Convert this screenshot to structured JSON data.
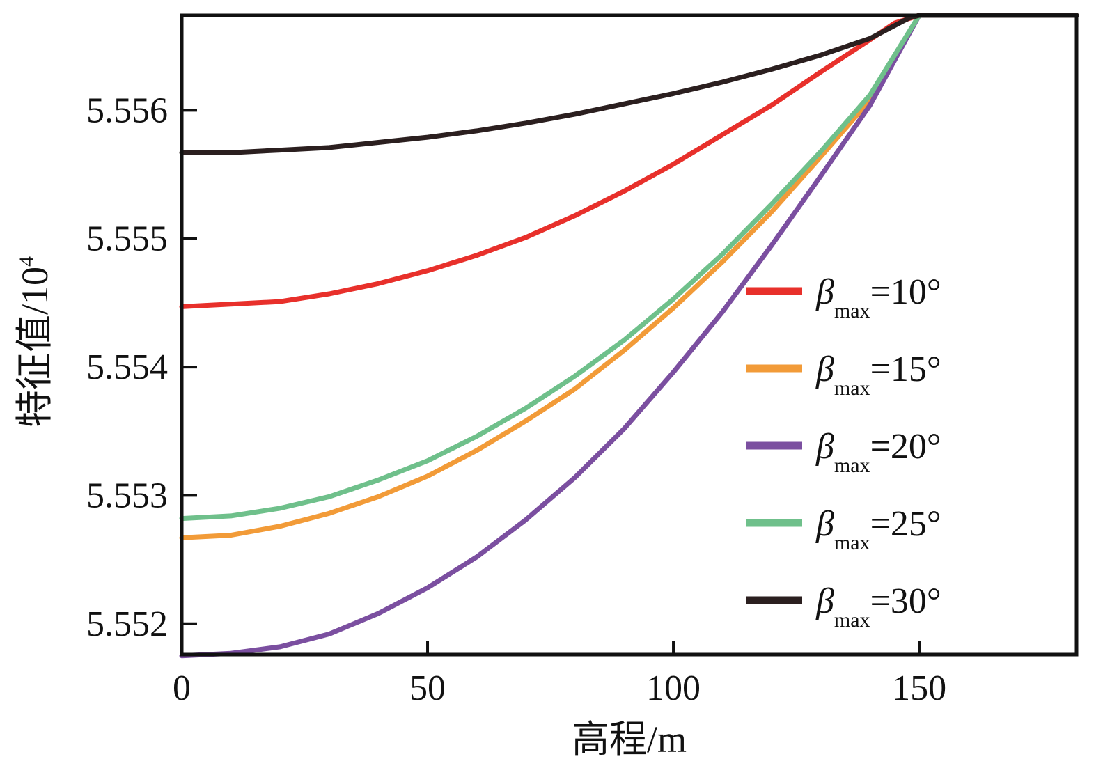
{
  "chart_data": {
    "type": "line",
    "xlabel": "高程/m",
    "ylabel": "特征值/10",
    "ylabel_exponent": "4",
    "xlim": [
      0,
      182
    ],
    "ylim": [
      5.55176,
      5.55674
    ],
    "xticks": [
      0,
      50,
      100,
      150
    ],
    "xtick_labels": [
      "0",
      "50",
      "100",
      "150"
    ],
    "yticks": [
      5.552,
      5.553,
      5.554,
      5.555,
      5.556
    ],
    "ytick_labels": [
      "5.552",
      "5.553",
      "5.554",
      "5.555",
      "5.556"
    ],
    "legend": {
      "position": "right",
      "symbol": "β",
      "subscript": "max"
    },
    "series": [
      {
        "name": "βmax=10°",
        "label_suffix": "=10°",
        "color": "#e8302b",
        "x": [
          0,
          10,
          20,
          30,
          40,
          50,
          60,
          70,
          80,
          90,
          100,
          110,
          120,
          130,
          140,
          145,
          150,
          160,
          170,
          182
        ],
        "y": [
          5.55447,
          5.55449,
          5.55451,
          5.55457,
          5.55465,
          5.55475,
          5.55487,
          5.55501,
          5.55518,
          5.55537,
          5.55558,
          5.55581,
          5.55604,
          5.5563,
          5.55655,
          5.55668,
          5.55674,
          5.55674,
          5.55674,
          5.55674
        ]
      },
      {
        "name": "βmax=15°",
        "label_suffix": "=15°",
        "color": "#f29b38",
        "x": [
          0,
          10,
          20,
          30,
          40,
          50,
          60,
          70,
          80,
          90,
          100,
          110,
          120,
          130,
          140,
          150,
          160,
          170,
          182
        ],
        "y": [
          5.55267,
          5.55269,
          5.55276,
          5.55286,
          5.55299,
          5.55315,
          5.55335,
          5.55358,
          5.55383,
          5.55413,
          5.55446,
          5.55482,
          5.55521,
          5.55564,
          5.55608,
          5.55674,
          5.55674,
          5.55674,
          5.55674
        ]
      },
      {
        "name": "βmax=20°",
        "label_suffix": "=20°",
        "color": "#7b4fa0",
        "x": [
          0,
          10,
          20,
          30,
          40,
          50,
          60,
          70,
          80,
          90,
          100,
          110,
          120,
          130,
          140,
          150,
          160,
          170,
          182
        ],
        "y": [
          5.55175,
          5.55177,
          5.55182,
          5.55192,
          5.55208,
          5.55228,
          5.55252,
          5.55281,
          5.55314,
          5.55352,
          5.55396,
          5.55443,
          5.55495,
          5.55549,
          5.55604,
          5.55674,
          5.55674,
          5.55674,
          5.55674
        ]
      },
      {
        "name": "βmax=25°",
        "label_suffix": "=25°",
        "color": "#6fc08b",
        "x": [
          0,
          10,
          20,
          30,
          40,
          50,
          60,
          70,
          80,
          90,
          100,
          110,
          120,
          130,
          140,
          150,
          160,
          170,
          182
        ],
        "y": [
          5.55282,
          5.55284,
          5.5529,
          5.55299,
          5.55312,
          5.55327,
          5.55346,
          5.55368,
          5.55393,
          5.55421,
          5.55453,
          5.55488,
          5.55527,
          5.55568,
          5.55612,
          5.55674,
          5.55674,
          5.55674,
          5.55674
        ]
      },
      {
        "name": "βmax=30°",
        "label_suffix": "=30°",
        "color": "#2b1f1f",
        "x": [
          0,
          10,
          20,
          30,
          40,
          50,
          60,
          70,
          80,
          90,
          100,
          110,
          120,
          130,
          140,
          148,
          150,
          160,
          170,
          182
        ],
        "y": [
          5.55567,
          5.55567,
          5.55569,
          5.55571,
          5.55575,
          5.55579,
          5.55584,
          5.5559,
          5.55597,
          5.55605,
          5.55613,
          5.55622,
          5.55632,
          5.55643,
          5.55656,
          5.55672,
          5.55674,
          5.55674,
          5.55674,
          5.55674
        ]
      }
    ]
  }
}
